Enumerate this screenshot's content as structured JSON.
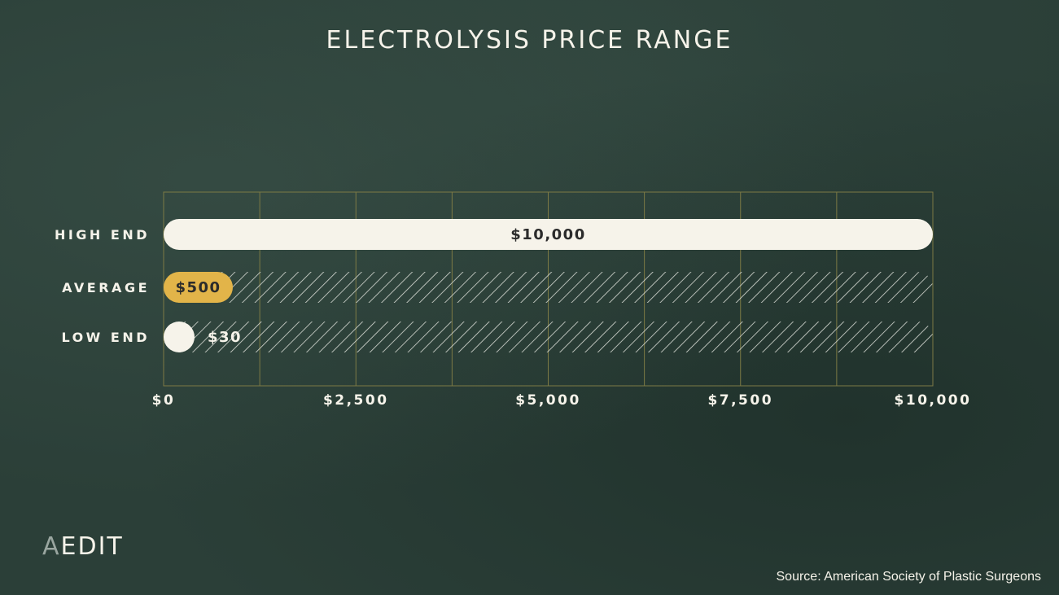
{
  "chart_data": {
    "type": "bar",
    "title": "ELECTROLYSIS PRICE RANGE",
    "categories": [
      "HIGH END",
      "AVERAGE",
      "LOW END"
    ],
    "values": [
      10000,
      500,
      30
    ],
    "data_labels": [
      "$10,000",
      "$500",
      "$30"
    ],
    "xlim": [
      0,
      10000
    ],
    "x_ticks": [
      0,
      2500,
      5000,
      7500,
      10000
    ],
    "x_tick_labels": [
      "$0",
      "$2,500",
      "$5,000",
      "$7,500",
      "$10,000"
    ],
    "grid": true,
    "colors": {
      "HIGH END": "#f6f3ea",
      "AVERAGE": "#e2b449",
      "LOW END": "#f6f3ea",
      "grid": "#7d7a45",
      "hatch": "#d9dcd5"
    }
  },
  "logo": {
    "first": "A",
    "rest": "EDIT"
  },
  "source": "Source: American Society of Plastic Surgeons"
}
